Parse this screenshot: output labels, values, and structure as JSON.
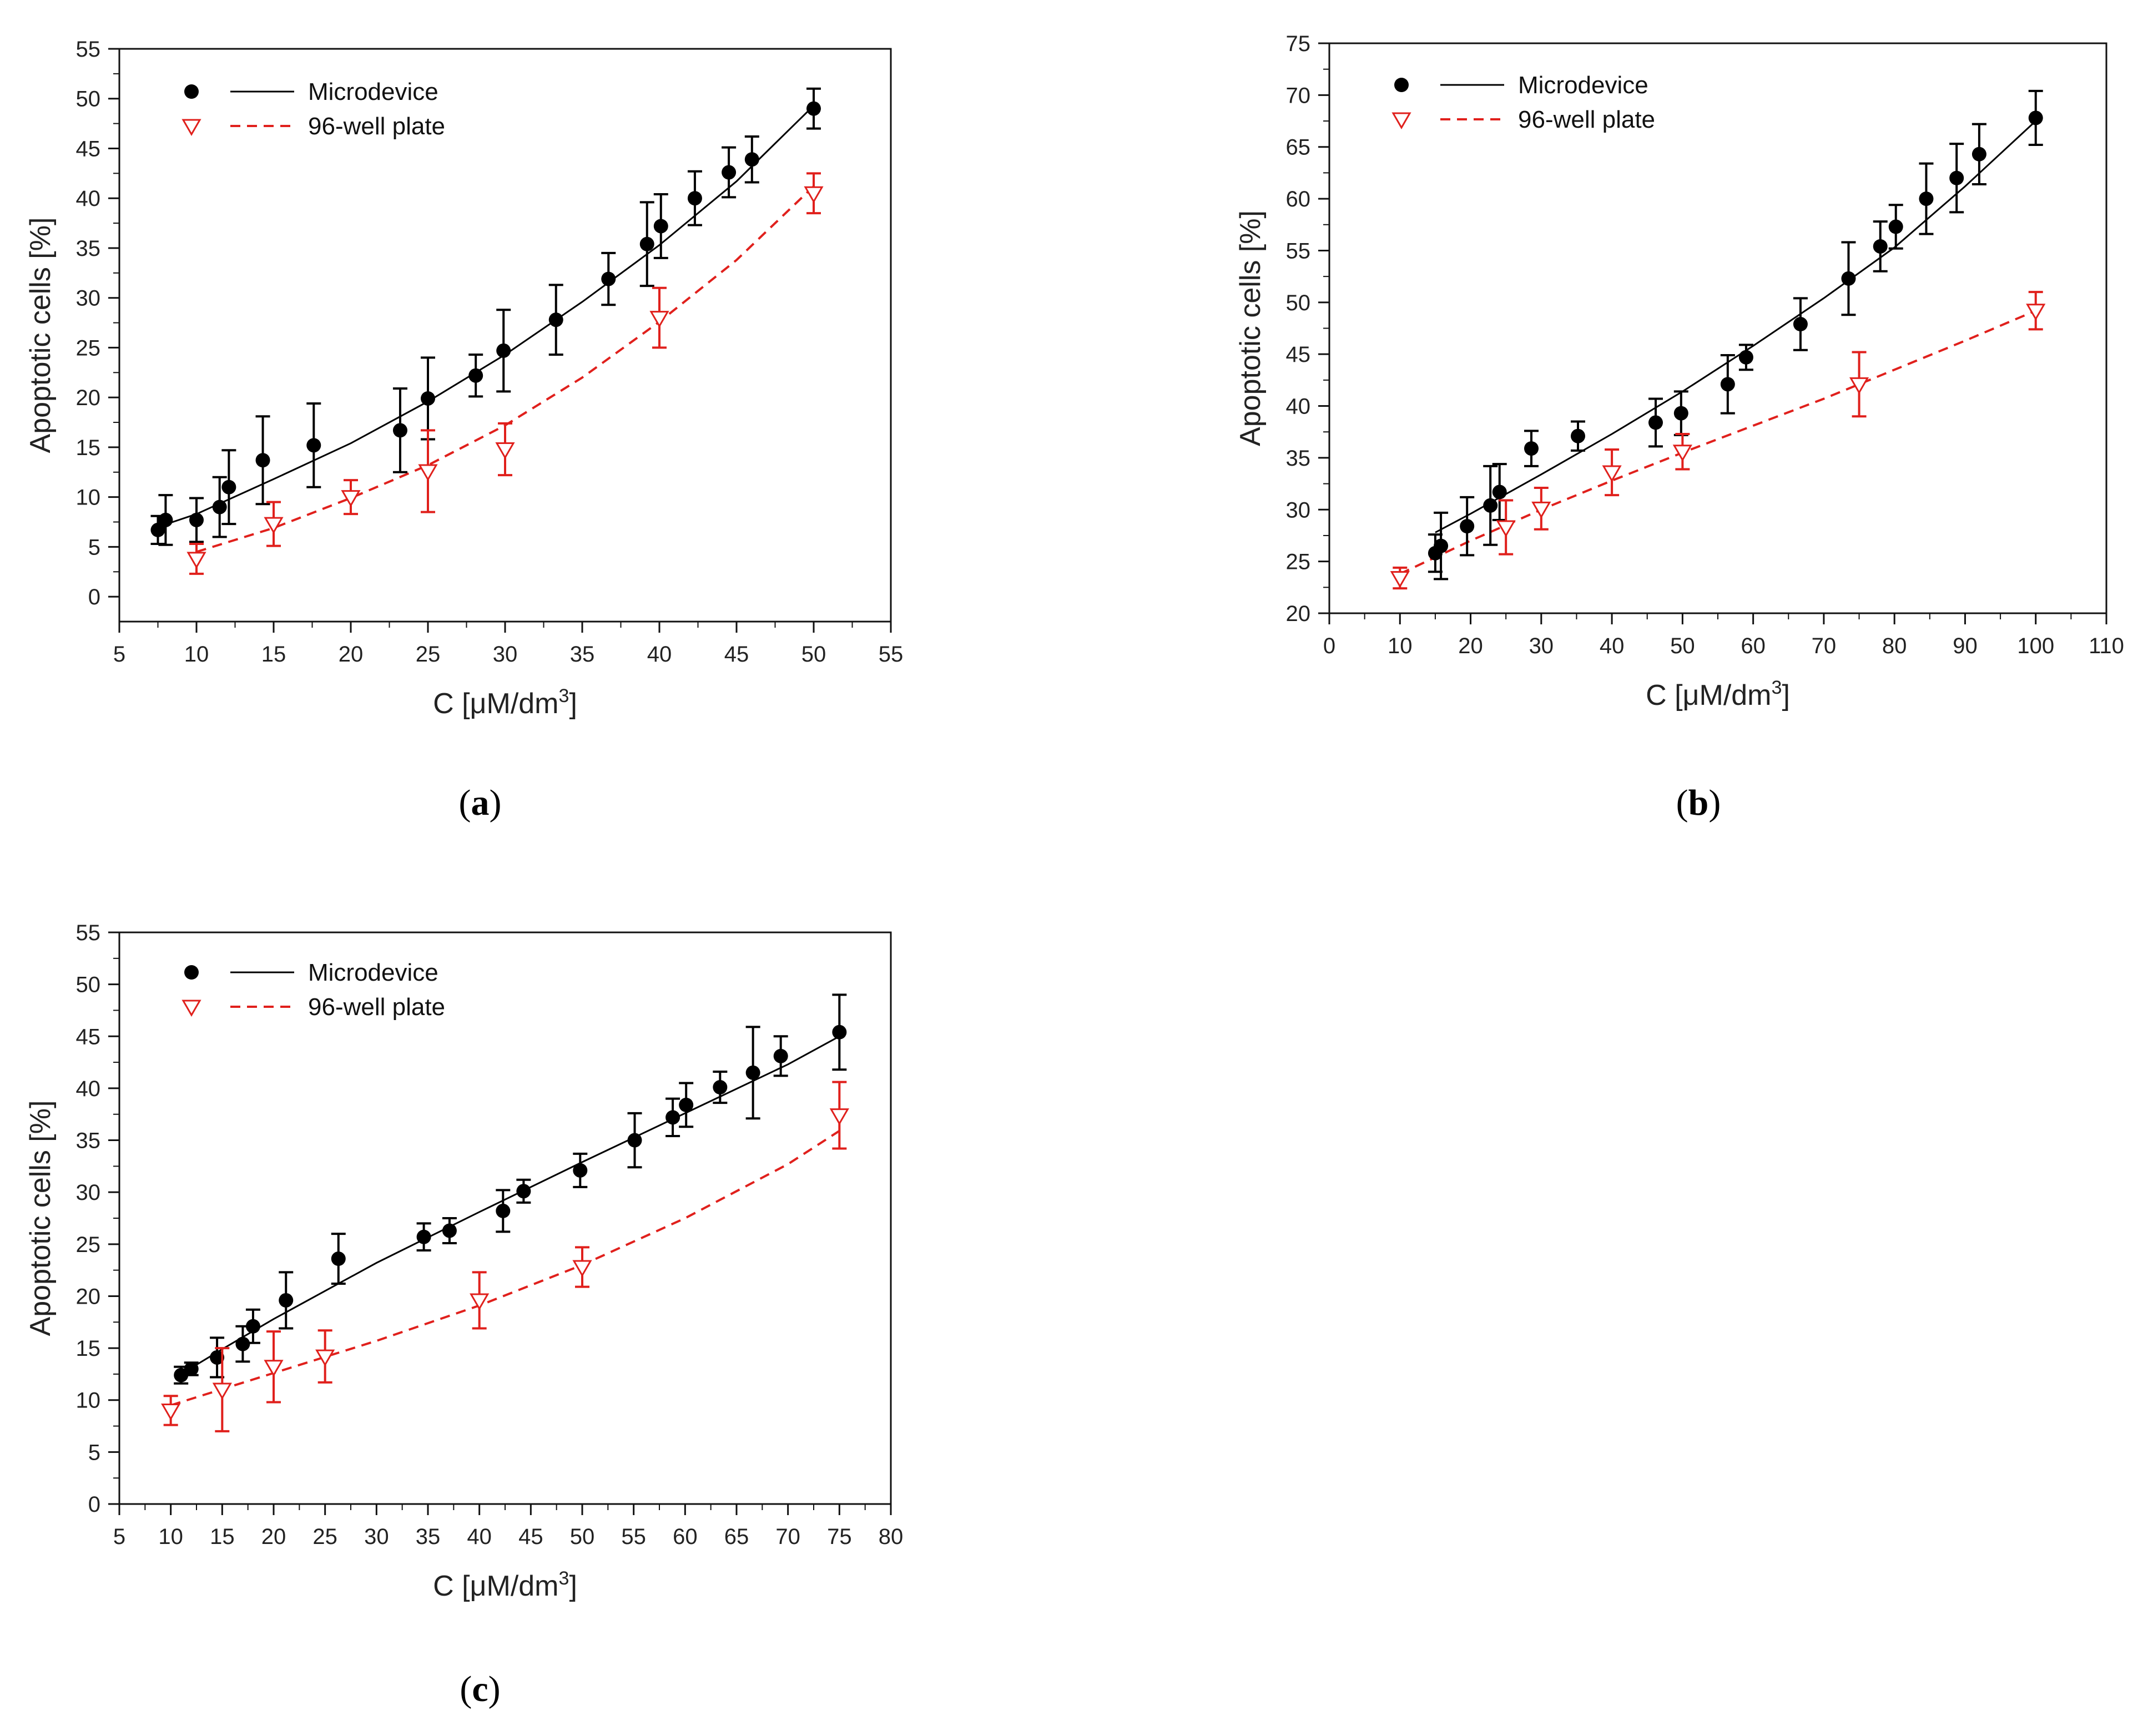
{
  "figure": {
    "panels": [
      "a",
      "b",
      "c"
    ]
  },
  "chart_data": [
    {
      "panel": "a",
      "caption_letter": "a",
      "type": "scatter",
      "xlabel": "C [μM/dm",
      "xlabel_sup": "3",
      "xlabel_close": "]",
      "ylabel": "Apoptotic cells [%]",
      "xlim": [
        5,
        55
      ],
      "ylim": [
        -2.5,
        55
      ],
      "xticks": [
        5,
        10,
        15,
        20,
        25,
        30,
        35,
        40,
        45,
        50,
        55
      ],
      "yticks": [
        0,
        5,
        10,
        15,
        20,
        25,
        30,
        35,
        40,
        45,
        50,
        55
      ],
      "legend": [
        "Microdevice",
        "96-well plate"
      ],
      "legend_position": "top-left",
      "colors": {
        "microdevice": "#000000",
        "plate": "#e0201c"
      },
      "series": [
        {
          "name": "Microdevice",
          "marker": "filled-circle",
          "points": [
            {
              "x": 7.5,
              "y": 6.7,
              "err": 1.4
            },
            {
              "x": 8.0,
              "y": 7.7,
              "err": 2.5
            },
            {
              "x": 10.0,
              "y": 7.7,
              "err": 2.2
            },
            {
              "x": 11.5,
              "y": 9.0,
              "err": 3.0
            },
            {
              "x": 12.1,
              "y": 11.0,
              "err": 3.7
            },
            {
              "x": 14.3,
              "y": 13.7,
              "err": 4.4
            },
            {
              "x": 17.6,
              "y": 15.2,
              "err": 4.2
            },
            {
              "x": 23.2,
              "y": 16.7,
              "err": 4.2
            },
            {
              "x": 25.0,
              "y": 19.9,
              "err": 4.1
            },
            {
              "x": 28.1,
              "y": 22.2,
              "err": 2.1
            },
            {
              "x": 29.9,
              "y": 24.7,
              "err": 4.1
            },
            {
              "x": 33.3,
              "y": 27.8,
              "err": 3.5
            },
            {
              "x": 36.7,
              "y": 31.9,
              "err": 2.6
            },
            {
              "x": 39.2,
              "y": 35.4,
              "err": 4.2
            },
            {
              "x": 40.1,
              "y": 37.2,
              "err": 3.2
            },
            {
              "x": 42.3,
              "y": 40.0,
              "err": 2.7
            },
            {
              "x": 44.5,
              "y": 42.6,
              "err": 2.5
            },
            {
              "x": 46.0,
              "y": 43.9,
              "err": 2.3
            },
            {
              "x": 50.0,
              "y": 49.0,
              "err": 2.0
            }
          ],
          "fit_x": [
            7.5,
            10,
            15,
            20,
            25,
            30,
            35,
            40,
            45,
            50
          ],
          "fit_y": [
            7.0,
            8.3,
            11.8,
            15.4,
            19.6,
            24.3,
            29.6,
            35.3,
            41.7,
            49.3
          ]
        },
        {
          "name": "96-well plate",
          "marker": "open-triangle-down",
          "points": [
            {
              "x": 10.0,
              "y": 3.8,
              "err": 1.5
            },
            {
              "x": 15.0,
              "y": 7.3,
              "err": 2.2
            },
            {
              "x": 20.0,
              "y": 10.0,
              "err": 1.7
            },
            {
              "x": 25.0,
              "y": 12.6,
              "err": 4.1
            },
            {
              "x": 30.0,
              "y": 14.8,
              "err": 2.6
            },
            {
              "x": 40.0,
              "y": 28.0,
              "err": 3.0
            },
            {
              "x": 50.0,
              "y": 40.5,
              "err": 2.0
            }
          ],
          "fit_x": [
            10,
            15,
            20,
            25,
            30,
            35,
            40,
            45,
            50
          ],
          "fit_y": [
            4.5,
            6.9,
            9.9,
            13.2,
            17.2,
            22.0,
            27.6,
            33.8,
            41.2
          ]
        }
      ]
    },
    {
      "panel": "b",
      "caption_letter": "b",
      "type": "scatter",
      "xlabel": "C [μM/dm",
      "xlabel_sup": "3",
      "xlabel_close": "]",
      "ylabel": "Apoptotic cells [%]",
      "xlim": [
        0,
        110
      ],
      "ylim": [
        20,
        75
      ],
      "xticks": [
        0,
        10,
        20,
        30,
        40,
        50,
        60,
        70,
        80,
        90,
        100,
        110
      ],
      "yticks": [
        20,
        25,
        30,
        35,
        40,
        45,
        50,
        55,
        60,
        65,
        70,
        75
      ],
      "legend": [
        "Microdevice",
        "96-well plate"
      ],
      "legend_position": "top-left",
      "colors": {
        "microdevice": "#000000",
        "plate": "#e0201c"
      },
      "series": [
        {
          "name": "Microdevice",
          "marker": "filled-circle",
          "points": [
            {
              "x": 15.0,
              "y": 25.8,
              "err": 1.8
            },
            {
              "x": 15.8,
              "y": 26.5,
              "err": 3.2
            },
            {
              "x": 19.5,
              "y": 28.4,
              "err": 2.8
            },
            {
              "x": 22.8,
              "y": 30.4,
              "err": 3.8
            },
            {
              "x": 24.1,
              "y": 31.7,
              "err": 2.7
            },
            {
              "x": 28.6,
              "y": 35.9,
              "err": 1.7
            },
            {
              "x": 35.2,
              "y": 37.1,
              "err": 1.4
            },
            {
              "x": 46.2,
              "y": 38.4,
              "err": 2.3
            },
            {
              "x": 49.8,
              "y": 39.3,
              "err": 2.1
            },
            {
              "x": 56.4,
              "y": 42.1,
              "err": 2.8
            },
            {
              "x": 59.0,
              "y": 44.7,
              "err": 1.2
            },
            {
              "x": 66.7,
              "y": 47.9,
              "err": 2.5
            },
            {
              "x": 73.5,
              "y": 52.3,
              "err": 3.5
            },
            {
              "x": 78.0,
              "y": 55.4,
              "err": 2.4
            },
            {
              "x": 80.2,
              "y": 57.3,
              "err": 2.1
            },
            {
              "x": 84.5,
              "y": 60.0,
              "err": 3.4
            },
            {
              "x": 88.8,
              "y": 62.0,
              "err": 3.3
            },
            {
              "x": 92.0,
              "y": 64.3,
              "err": 2.9
            },
            {
              "x": 100.0,
              "y": 67.8,
              "err": 2.6
            }
          ],
          "fit_x": [
            15,
            20,
            30,
            40,
            50,
            60,
            70,
            80,
            90,
            100
          ],
          "fit_y": [
            27.8,
            29.6,
            33.4,
            37.3,
            41.4,
            45.8,
            50.4,
            55.3,
            61.2,
            67.5
          ]
        },
        {
          "name": "96-well plate",
          "marker": "open-triangle-down",
          "points": [
            {
              "x": 10.0,
              "y": 23.4,
              "err": 1.0
            },
            {
              "x": 25.0,
              "y": 28.3,
              "err": 2.6
            },
            {
              "x": 30.0,
              "y": 30.1,
              "err": 2.0
            },
            {
              "x": 40.0,
              "y": 33.6,
              "err": 2.2
            },
            {
              "x": 50.0,
              "y": 35.6,
              "err": 1.7
            },
            {
              "x": 75.0,
              "y": 42.1,
              "err": 3.1
            },
            {
              "x": 100.0,
              "y": 49.2,
              "err": 1.8
            }
          ],
          "fit_x": [
            10,
            20,
            30,
            40,
            50,
            60,
            70,
            80,
            90,
            100
          ],
          "fit_y": [
            23.8,
            27.0,
            30.0,
            32.8,
            35.5,
            38.1,
            40.7,
            43.5,
            46.3,
            49.2
          ]
        }
      ]
    },
    {
      "panel": "c",
      "caption_letter": "c",
      "type": "scatter",
      "xlabel": "C [μM/dm",
      "xlabel_sup": "3",
      "xlabel_close": "]",
      "ylabel": "Apoptotic cells [%]",
      "xlim": [
        5,
        80
      ],
      "ylim": [
        0,
        55
      ],
      "xticks": [
        5,
        10,
        15,
        20,
        25,
        30,
        35,
        40,
        45,
        50,
        55,
        60,
        65,
        70,
        75,
        80
      ],
      "yticks": [
        0,
        5,
        10,
        15,
        20,
        25,
        30,
        35,
        40,
        45,
        50,
        55
      ],
      "legend": [
        "Microdevice",
        "96-well plate"
      ],
      "legend_position": "top-left",
      "colors": {
        "microdevice": "#000000",
        "plate": "#e0201c"
      },
      "series": [
        {
          "name": "Microdevice",
          "marker": "filled-circle",
          "points": [
            {
              "x": 11.0,
              "y": 12.4,
              "err": 0.8
            },
            {
              "x": 12.0,
              "y": 13.0,
              "err": 0.6
            },
            {
              "x": 14.5,
              "y": 14.1,
              "err": 1.9
            },
            {
              "x": 17.0,
              "y": 15.4,
              "err": 1.7
            },
            {
              "x": 18.0,
              "y": 17.1,
              "err": 1.6
            },
            {
              "x": 21.2,
              "y": 19.6,
              "err": 2.7
            },
            {
              "x": 26.3,
              "y": 23.6,
              "err": 2.4
            },
            {
              "x": 34.6,
              "y": 25.7,
              "err": 1.3
            },
            {
              "x": 37.1,
              "y": 26.3,
              "err": 1.2
            },
            {
              "x": 42.3,
              "y": 28.2,
              "err": 2.0
            },
            {
              "x": 44.3,
              "y": 30.1,
              "err": 1.1
            },
            {
              "x": 49.8,
              "y": 32.1,
              "err": 1.6
            },
            {
              "x": 55.1,
              "y": 35.0,
              "err": 2.6
            },
            {
              "x": 58.8,
              "y": 37.2,
              "err": 1.8
            },
            {
              "x": 60.1,
              "y": 38.4,
              "err": 2.1
            },
            {
              "x": 63.4,
              "y": 40.1,
              "err": 1.5
            },
            {
              "x": 66.6,
              "y": 41.5,
              "err": 4.4
            },
            {
              "x": 69.3,
              "y": 43.1,
              "err": 1.9
            },
            {
              "x": 75.0,
              "y": 45.4,
              "err": 3.6
            }
          ],
          "fit_x": [
            11,
            15,
            20,
            30,
            40,
            50,
            60,
            70,
            75
          ],
          "fit_y": [
            12.5,
            14.9,
            17.8,
            23.2,
            28.1,
            32.9,
            37.6,
            42.3,
            45.0
          ]
        },
        {
          "name": "96-well plate",
          "marker": "open-triangle-down",
          "points": [
            {
              "x": 10.0,
              "y": 9.0,
              "err": 1.4
            },
            {
              "x": 15.0,
              "y": 11.0,
              "err": 4.0
            },
            {
              "x": 20.0,
              "y": 13.2,
              "err": 3.4
            },
            {
              "x": 25.0,
              "y": 14.2,
              "err": 2.5
            },
            {
              "x": 40.0,
              "y": 19.6,
              "err": 2.7
            },
            {
              "x": 50.0,
              "y": 22.8,
              "err": 1.9
            },
            {
              "x": 75.0,
              "y": 37.4,
              "err": 3.2
            }
          ],
          "fit_x": [
            10,
            20,
            30,
            40,
            50,
            60,
            70,
            75
          ],
          "fit_y": [
            9.5,
            12.6,
            15.7,
            19.1,
            23.0,
            27.5,
            32.7,
            35.9
          ]
        }
      ]
    }
  ]
}
